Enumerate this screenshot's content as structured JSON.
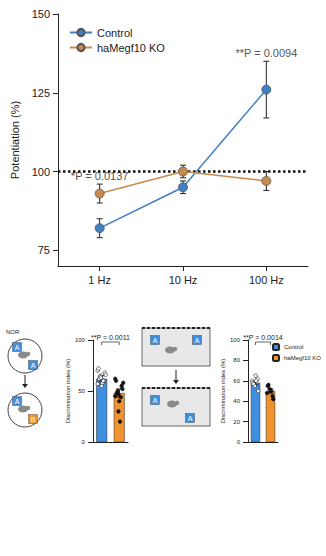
{
  "chart_data": [
    {
      "type": "line",
      "y_label": "Potentiation (%)",
      "categories": [
        "1 Hz",
        "10 Hz",
        "100 Hz"
      ],
      "ylim": [
        70,
        150
      ],
      "yticks": [
        75,
        100,
        125,
        150
      ],
      "grid": false,
      "legend": "upper left",
      "reference": 100,
      "series": [
        {
          "name": "Control",
          "color": "#3f7fc4",
          "values": [
            82,
            95,
            126
          ],
          "errors": [
            3,
            2,
            9
          ],
          "marker": "circle"
        },
        {
          "name": "haMegf10 KO",
          "color": "#c98a4b",
          "values": [
            93,
            100,
            97
          ],
          "errors": [
            3,
            2,
            3
          ],
          "marker": "circle"
        }
      ],
      "annotations": [
        {
          "text": "*P = 0.0137",
          "category": "1 Hz"
        },
        {
          "text": "**P = 0.0094",
          "category": "100 Hz"
        }
      ]
    },
    {
      "type": "bar",
      "y_label": "Discrimination index (%)",
      "categories": [
        null,
        null
      ],
      "values": [
        62,
        48
      ],
      "errors": [
        3,
        4
      ],
      "colors": [
        "#3f8fe0",
        "#f0922e"
      ],
      "points": [
        [
          70,
          65,
          60,
          72,
          55,
          68,
          62,
          58,
          66,
          64,
          60,
          57,
          63
        ],
        [
          45,
          30,
          55,
          60,
          40,
          52,
          48,
          20,
          58,
          50,
          44,
          62,
          47
        ]
      ],
      "ylim": [
        0,
        100
      ],
      "yticks": [
        0,
        50,
        100
      ],
      "tick_labels": "y",
      "annotations": [
        {
          "text": "**P = 0.0011"
        }
      ]
    },
    {
      "type": "bar",
      "y_label": "Discrimination index (%)",
      "categories": [
        "Control",
        "haMegf10 KO"
      ],
      "values": [
        58,
        50
      ],
      "errors": [
        2,
        2
      ],
      "colors": [
        "#3f8fe0",
        "#f0922e"
      ],
      "points": [
        [
          60,
          55,
          62,
          58,
          65,
          50,
          57,
          60
        ],
        [
          48,
          52,
          45,
          55,
          50,
          42,
          56,
          50
        ]
      ],
      "ylim": [
        0,
        100
      ],
      "yticks": [
        0,
        20,
        40,
        60,
        80,
        100
      ],
      "tick_labels": "y",
      "legend": "upper right",
      "annotations": [
        {
          "text": "**P = 0.0014"
        }
      ]
    }
  ],
  "diagrams": [
    {
      "label": "NOR",
      "before": [
        "A",
        "A"
      ],
      "after": [
        "A",
        "B"
      ]
    },
    {
      "before": [
        "A",
        "A"
      ],
      "after": [
        "A",
        "A"
      ]
    }
  ]
}
